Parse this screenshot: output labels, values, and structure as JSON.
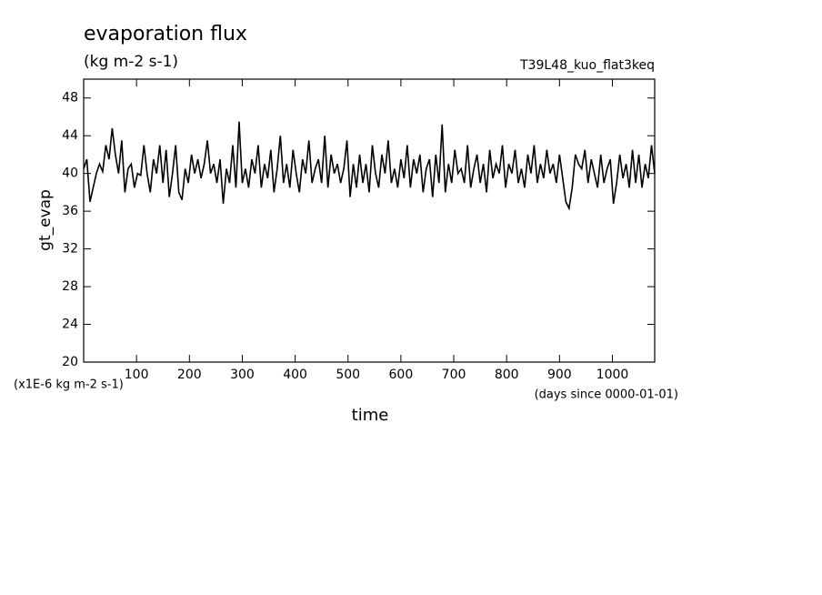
{
  "chart_data": {
    "type": "line",
    "title": "evaporation flux",
    "subtitle": "(kg m-2 s-1)",
    "run_label": "T39L48_kuo_flat3keq",
    "y_label": "gt_evap",
    "x_label": "time",
    "y_unit_label": "(x1E-6 kg m-2 s-1)",
    "x_unit_label": "(days since 0000-01-01)",
    "xlim": [
      0,
      1080
    ],
    "xticks": [
      100,
      200,
      300,
      400,
      500,
      600,
      700,
      800,
      900,
      1000
    ],
    "ylim": [
      20,
      50
    ],
    "yticks": [
      20,
      24,
      28,
      32,
      36,
      40,
      44,
      48
    ],
    "color": "#000000",
    "x": [
      0,
      6,
      12,
      18,
      24,
      30,
      36,
      42,
      48,
      54,
      60,
      66,
      72,
      78,
      84,
      90,
      96,
      102,
      108,
      114,
      120,
      126,
      132,
      138,
      144,
      150,
      156,
      162,
      168,
      174,
      180,
      186,
      192,
      198,
      204,
      210,
      216,
      222,
      228,
      234,
      240,
      246,
      252,
      258,
      264,
      270,
      276,
      282,
      288,
      294,
      300,
      306,
      312,
      318,
      324,
      330,
      336,
      342,
      348,
      354,
      360,
      366,
      372,
      378,
      384,
      390,
      396,
      402,
      408,
      414,
      420,
      426,
      432,
      438,
      444,
      450,
      456,
      462,
      468,
      474,
      480,
      486,
      492,
      498,
      504,
      510,
      516,
      522,
      528,
      534,
      540,
      546,
      552,
      558,
      564,
      570,
      576,
      582,
      588,
      594,
      600,
      606,
      612,
      618,
      624,
      630,
      636,
      642,
      648,
      654,
      660,
      666,
      672,
      678,
      684,
      690,
      696,
      702,
      708,
      714,
      720,
      726,
      732,
      738,
      744,
      750,
      756,
      762,
      768,
      774,
      780,
      786,
      792,
      798,
      804,
      810,
      816,
      822,
      828,
      834,
      840,
      846,
      852,
      858,
      864,
      870,
      876,
      882,
      888,
      894,
      900,
      906,
      912,
      918,
      924,
      930,
      936,
      942,
      948,
      954,
      960,
      966,
      972,
      978,
      984,
      990,
      996,
      1002,
      1008,
      1014,
      1020,
      1026,
      1032,
      1038,
      1044,
      1050,
      1056,
      1062,
      1068,
      1074,
      1080
    ],
    "values": [
      40.5,
      41.5,
      37,
      38.5,
      40,
      41,
      40.2,
      43,
      41.5,
      44.8,
      42,
      40,
      43.5,
      38,
      40.5,
      41,
      38.5,
      40,
      39.8,
      43,
      40,
      38,
      41.5,
      40,
      43,
      39,
      42.5,
      37.5,
      40,
      43,
      38,
      37.2,
      40.5,
      39,
      42,
      40,
      41.5,
      39.5,
      41,
      43.5,
      40,
      41,
      39,
      41.5,
      36.8,
      40.5,
      39,
      43,
      38.5,
      45.5,
      39,
      40.5,
      38.5,
      41.5,
      40,
      43,
      38.5,
      41,
      39.5,
      42.5,
      38,
      40.5,
      44,
      39,
      41,
      38.5,
      42.5,
      40,
      38,
      41.5,
      40,
      43.5,
      39,
      40.5,
      41.5,
      39,
      44,
      38.5,
      42,
      40,
      41,
      39,
      40.5,
      43.5,
      37.5,
      41,
      38.5,
      42,
      39,
      41,
      38,
      43,
      40,
      38.5,
      42,
      40,
      43.5,
      39,
      40.5,
      38.5,
      41.5,
      39.5,
      43,
      38.5,
      41.5,
      40,
      42,
      38,
      40.5,
      41.5,
      37.5,
      42,
      39,
      45.2,
      38,
      41,
      39,
      42.5,
      40,
      40.5,
      39,
      43,
      38.5,
      40.5,
      42,
      39,
      41,
      38,
      42.5,
      39.5,
      41,
      40,
      43,
      38.5,
      41,
      40,
      42.5,
      39,
      40.5,
      38.5,
      42,
      40,
      43,
      39,
      41,
      39.5,
      42.5,
      40,
      41,
      39,
      42,
      39.5,
      37,
      36.3,
      38.5,
      42,
      41,
      40.5,
      42.5,
      39,
      41.5,
      40,
      38.5,
      42,
      39,
      40.5,
      41.5,
      36.8,
      39,
      42,
      39.5,
      41,
      38.5,
      42.5,
      39,
      42,
      38.5,
      41,
      39.5,
      43,
      40
    ]
  }
}
